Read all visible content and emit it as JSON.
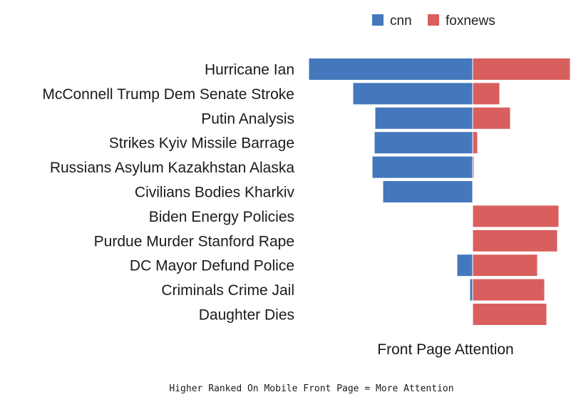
{
  "chart_data": {
    "type": "bar",
    "orientation": "horizontal-diverging",
    "categories": [
      "Hurricane Ian",
      "McConnell Trump Dem Senate Stroke",
      "Putin Analysis",
      "Strikes Kyiv Missile Barrage",
      "Russians Asylum Kazakhstan Alaska",
      "Civilians Bodies Kharkiv",
      "Biden Energy Policies",
      "Purdue Murder Stanford Rape",
      "DC Mayor Defund Police",
      "Criminals Crime Jail",
      "Daughter Dies"
    ],
    "series": [
      {
        "name": "cnn",
        "color": "#4477bb",
        "direction": "left",
        "values": [
          230,
          168,
          137,
          138,
          141,
          126,
          0,
          0,
          22,
          4,
          0
        ]
      },
      {
        "name": "foxnews",
        "color": "#d95f5f",
        "direction": "right",
        "values": [
          137,
          38,
          53,
          7,
          2,
          0,
          121,
          119,
          91,
          101,
          104
        ]
      }
    ],
    "xlabel": "Front Page Attention",
    "ylabel": "",
    "title": "",
    "legend_position": "top",
    "grid": false,
    "caption": "Higher Ranked On Mobile Front Page = More Attention"
  }
}
